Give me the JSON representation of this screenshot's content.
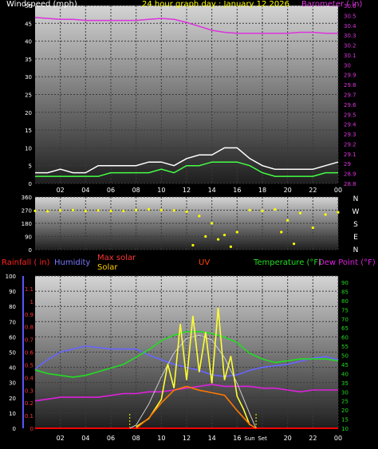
{
  "chart_data": [
    {
      "type": "line",
      "title": "24 hour graph day : January 12 2026",
      "ylabel": "Windspeed (mph)",
      "y2label": "Barometer ( in)",
      "ylim": [
        0,
        50
      ],
      "y2lim": [
        28.8,
        30.6
      ],
      "yticks": [
        "0",
        "5",
        "10",
        "15",
        "20",
        "25",
        "30",
        "35",
        "40",
        "45",
        "50"
      ],
      "y2ticks": [
        "28.8",
        "28.9",
        "29",
        "29.1",
        "29.2",
        "29.3",
        "29.4",
        "29.5",
        "29.6",
        "29.7",
        "29.8",
        "29.9",
        "30",
        "30.1",
        "30.2",
        "30.3",
        "30.4",
        "30.5",
        "30.6"
      ],
      "xticks": [
        "02",
        "04",
        "06",
        "08",
        "10",
        "12",
        "14",
        "16",
        "18",
        "20",
        "22",
        "00"
      ],
      "series": [
        {
          "name": "Barometer ( in)",
          "color": "#dd33dd",
          "axis": "right",
          "x": [
            0,
            1,
            2,
            3,
            4,
            5,
            6,
            7,
            8,
            9,
            10,
            11,
            12,
            13,
            14,
            15,
            16,
            17,
            18,
            19,
            20,
            21,
            22,
            23,
            24
          ],
          "y": [
            30.48,
            30.47,
            30.46,
            30.46,
            30.45,
            30.45,
            30.45,
            30.45,
            30.45,
            30.46,
            30.47,
            30.46,
            30.43,
            30.39,
            30.35,
            30.33,
            30.32,
            30.32,
            30.32,
            30.32,
            30.32,
            30.33,
            30.33,
            30.32,
            30.32
          ]
        },
        {
          "color": "#ffffff",
          "x": [
            0,
            1,
            2,
            3,
            4,
            5,
            6,
            7,
            8,
            9,
            10,
            11,
            12,
            13,
            14,
            15,
            16,
            17,
            18,
            19,
            20,
            21,
            22,
            23,
            24
          ],
          "y": [
            3,
            3,
            4,
            3,
            3,
            5,
            5,
            5,
            5,
            6,
            6,
            5,
            7,
            8,
            8,
            10,
            10,
            7,
            5,
            4,
            4,
            4,
            4,
            5,
            6
          ]
        },
        {
          "color": "#44ff44",
          "x": [
            0,
            1,
            2,
            3,
            4,
            5,
            6,
            7,
            8,
            9,
            10,
            11,
            12,
            13,
            14,
            15,
            16,
            17,
            18,
            19,
            20,
            21,
            22,
            23,
            24
          ],
          "y": [
            2,
            2,
            2,
            2,
            2,
            2,
            3,
            3,
            3,
            3,
            4,
            3,
            5,
            5,
            6,
            6,
            6,
            5,
            3,
            2,
            2,
            2,
            2,
            3,
            3
          ]
        }
      ]
    },
    {
      "type": "scatter",
      "ylabel": "Wind direction",
      "ylim": [
        0,
        360
      ],
      "yticks": [
        "0",
        "90",
        "180",
        "270",
        "360"
      ],
      "right_labels": [
        "N",
        "W",
        "S",
        "E",
        "N"
      ],
      "color": "#ffff00",
      "x": [
        0,
        1,
        2,
        3,
        4,
        5,
        6,
        7,
        8,
        9,
        10,
        11,
        12,
        12.5,
        13,
        13.5,
        14,
        14.5,
        15,
        15.5,
        16,
        17,
        18,
        19,
        19.5,
        20,
        20.5,
        21,
        22,
        23,
        24
      ],
      "y": [
        265,
        262,
        268,
        270,
        265,
        268,
        265,
        265,
        270,
        275,
        270,
        268,
        260,
        30,
        230,
        90,
        180,
        70,
        100,
        20,
        120,
        270,
        265,
        275,
        120,
        200,
        40,
        250,
        150,
        240,
        255
      ]
    },
    {
      "type": "line",
      "legend": {
        "rainfall": "Rainfall ( in)",
        "humidity": "Humidity",
        "max_solar": "Max solar",
        "solar": "Solar",
        "uv": "UV",
        "temperature": "Temperature (°F)",
        "dew_point": "Dew Point (°F)"
      },
      "yticks_humidity": [
        "0",
        "10",
        "20",
        "30",
        "40",
        "50",
        "60",
        "70",
        "80",
        "90",
        "100"
      ],
      "yticks_rain": [
        "0",
        "0.1",
        "0.2",
        "0.3",
        "0.4",
        "0.5",
        "0.6",
        "0.7",
        "0.8",
        "0.9",
        "1",
        "1.1"
      ],
      "yticks_temp": [
        "10",
        "15",
        "20",
        "25",
        "30",
        "35",
        "40",
        "45",
        "50",
        "55",
        "60",
        "65",
        "70",
        "75",
        "80",
        "85",
        "90"
      ],
      "xticks": [
        "02",
        "04",
        "06",
        "08",
        "10",
        "12",
        "14",
        "16",
        "20",
        "22",
        "00"
      ],
      "sun_labels": [
        "Sun",
        "Set"
      ],
      "series": [
        {
          "name": "Humidity",
          "color": "#6666ff",
          "axis": "humidity",
          "x": [
            0,
            1,
            2,
            3,
            4,
            5,
            6,
            7,
            8,
            9,
            10,
            11,
            12,
            13,
            14,
            15,
            16,
            17,
            18,
            19,
            20,
            21,
            22,
            23,
            24
          ],
          "y": [
            39,
            45,
            50,
            52,
            54,
            53,
            52,
            52,
            52,
            48,
            45,
            42,
            40,
            38,
            35,
            34,
            35,
            38,
            40,
            41,
            42,
            44,
            46,
            47,
            45
          ]
        },
        {
          "name": "Temperature (°F)",
          "color": "#22dd22",
          "axis": "temp",
          "x": [
            0,
            1,
            2,
            3,
            4,
            5,
            6,
            7,
            8,
            9,
            10,
            11,
            12,
            13,
            14,
            15,
            16,
            17,
            18,
            19,
            20,
            21,
            22,
            23,
            24
          ],
          "y": [
            42,
            40,
            39,
            38,
            39,
            41,
            43,
            45,
            49,
            53,
            58,
            61,
            63,
            63,
            62,
            60,
            57,
            51,
            48,
            46,
            47,
            48,
            48,
            48,
            47
          ]
        },
        {
          "name": "Dew Point (°F)",
          "color": "#dd22dd",
          "axis": "temp",
          "x": [
            0,
            1,
            2,
            3,
            4,
            5,
            6,
            7,
            8,
            9,
            10,
            11,
            12,
            13,
            14,
            15,
            16,
            17,
            18,
            19,
            20,
            21,
            22,
            23,
            24
          ],
          "y": [
            25,
            26,
            27,
            27,
            27,
            27,
            28,
            29,
            29,
            30,
            30,
            31,
            32,
            33,
            34,
            33,
            33,
            33,
            32,
            32,
            31,
            30,
            31,
            31,
            31
          ]
        },
        {
          "name": "Max solar",
          "color": "#cccccc",
          "axis": "solar",
          "x": [
            7.5,
            8,
            9,
            10,
            11,
            12,
            13,
            14,
            15,
            16,
            17,
            17.5
          ],
          "y": [
            0,
            20,
            150,
            320,
            470,
            560,
            580,
            550,
            440,
            280,
            90,
            0
          ]
        },
        {
          "name": "Solar",
          "color": "#ffff33",
          "axis": "solar",
          "x": [
            8,
            9,
            10,
            10.5,
            11,
            11.5,
            12,
            12.5,
            13,
            13.5,
            14,
            14.5,
            15,
            15.5,
            16,
            16.5,
            17
          ],
          "y": [
            10,
            60,
            180,
            400,
            250,
            650,
            300,
            700,
            350,
            600,
            280,
            750,
            300,
            450,
            200,
            120,
            20
          ]
        },
        {
          "name": "UV",
          "color": "#ff7700",
          "axis": "rain",
          "x": [
            8,
            9,
            10,
            11,
            12,
            13,
            14,
            15,
            16,
            17,
            17.5
          ],
          "y": [
            0,
            0.08,
            0.2,
            0.3,
            0.33,
            0.3,
            0.28,
            0.26,
            0.14,
            0.03,
            0
          ]
        }
      ],
      "rainfall_total": 0
    }
  ]
}
